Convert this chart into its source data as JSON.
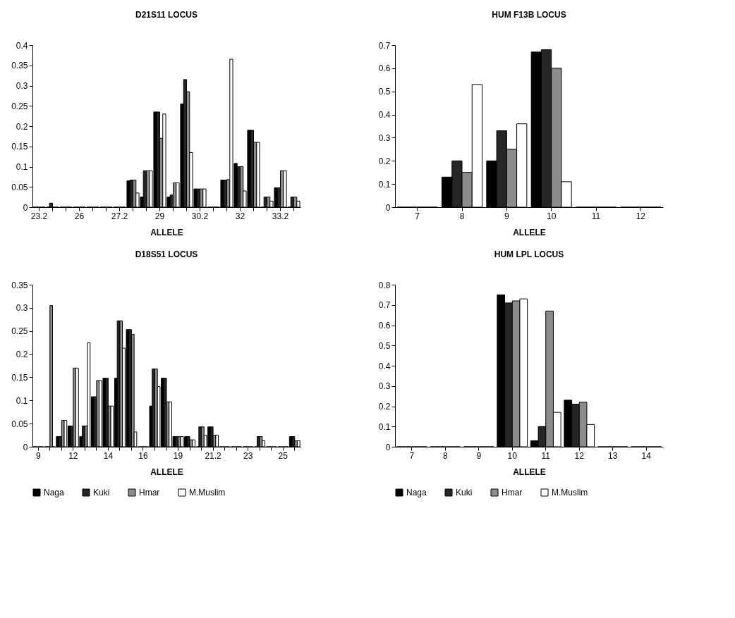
{
  "chart_data": [
    {
      "type": "bar",
      "title": "D21S11 LOCUS",
      "xlabel": "ALLELE",
      "legend": false,
      "categories": [
        "23.2",
        null,
        null,
        "26",
        null,
        null,
        "27.2",
        null,
        null,
        "29",
        null,
        null,
        "30.2",
        null,
        null,
        "32",
        null,
        null,
        "33.2",
        null
      ],
      "ylim": [
        0,
        0.4
      ],
      "yticks": [
        0,
        0.05,
        0.1,
        0.15,
        0.2,
        0.25,
        0.3,
        0.35,
        0.4
      ],
      "series": [
        {
          "color": "#000000",
          "values": [
            0,
            0,
            0,
            0,
            0,
            0,
            0,
            0.065,
            0.025,
            0.235,
            0.025,
            0.255,
            0.045,
            0,
            0.067,
            0.108,
            0.19,
            0,
            0.048,
            0
          ]
        },
        {
          "color": "#262626",
          "values": [
            0,
            0.01,
            0,
            0,
            0,
            0,
            0,
            0.067,
            0.09,
            0.235,
            0.03,
            0.315,
            0.045,
            0,
            0.067,
            0.1,
            0.19,
            0.025,
            0.048,
            0.025
          ]
        },
        {
          "color": "#8c8c8c",
          "values": [
            0,
            0,
            0,
            0,
            0,
            0,
            0,
            0.067,
            0.09,
            0.17,
            0.06,
            0.285,
            0.045,
            0,
            0.068,
            0.1,
            0.16,
            0.025,
            0.09,
            0.025
          ]
        },
        {
          "color": "#ffffff",
          "values": [
            0,
            0,
            0,
            0,
            0,
            0,
            0,
            0.035,
            0.09,
            0.23,
            0.06,
            0.135,
            0.045,
            0,
            0.365,
            0.04,
            0.16,
            0.015,
            0.09,
            0.015
          ]
        }
      ]
    },
    {
      "type": "bar",
      "title": "HUM F13B LOCUS",
      "xlabel": "ALLELE",
      "legend": false,
      "categories": [
        "7",
        "8",
        "9",
        "10",
        "11",
        "12"
      ],
      "ylim": [
        0,
        0.7
      ],
      "yticks": [
        0,
        0.1,
        0.2,
        0.3,
        0.4,
        0.5,
        0.6,
        0.7
      ],
      "series": [
        {
          "color": "#000000",
          "values": [
            0,
            0.13,
            0.2,
            0.67,
            0,
            0
          ]
        },
        {
          "color": "#262626",
          "values": [
            0,
            0.2,
            0.33,
            0.68,
            0,
            0
          ]
        },
        {
          "color": "#8c8c8c",
          "values": [
            0,
            0.15,
            0.25,
            0.6,
            0,
            0
          ]
        },
        {
          "color": "#ffffff",
          "values": [
            0,
            0.53,
            0.36,
            0.11,
            0,
            0
          ]
        }
      ]
    },
    {
      "type": "bar",
      "title": "D18S51 LOCUS",
      "xlabel": "ALLELE",
      "legend": "bottom",
      "categories": [
        "9",
        null,
        null,
        "12",
        null,
        null,
        "14",
        null,
        null,
        "16",
        null,
        null,
        "19",
        null,
        null,
        "21.2",
        null,
        null,
        "23",
        null,
        null,
        "25",
        null
      ],
      "ylim": [
        0,
        0.35
      ],
      "yticks": [
        0,
        0.05,
        0.1,
        0.15,
        0.2,
        0.25,
        0.3,
        0.35
      ],
      "series": [
        {
          "name": "Naga",
          "color": "#000000",
          "values": [
            0,
            0,
            0.022,
            0.045,
            0.022,
            0.108,
            0.148,
            0.148,
            0.253,
            0,
            0.088,
            0.148,
            0.022,
            0.022,
            0,
            0.043,
            0,
            0,
            0,
            0,
            0,
            0,
            0.022
          ]
        },
        {
          "name": "Kuki",
          "color": "#262626",
          "values": [
            0,
            0,
            0.022,
            0.045,
            0.045,
            0.108,
            0.148,
            0.272,
            0.253,
            0,
            0.168,
            0.148,
            0.022,
            0.022,
            0.043,
            0.043,
            0,
            0,
            0,
            0.022,
            0,
            0,
            0.022
          ]
        },
        {
          "name": "Hmar",
          "color": "#8c8c8c",
          "values": [
            0,
            0.305,
            0.057,
            0.17,
            0.045,
            0.143,
            0.088,
            0.272,
            0.243,
            0,
            0.168,
            0.097,
            0.022,
            0.015,
            0.043,
            0.025,
            0,
            0,
            0,
            0.022,
            0,
            0,
            0.013
          ]
        },
        {
          "name": "M.Muslim",
          "color": "#ffffff",
          "values": [
            0,
            0,
            0.057,
            0.17,
            0.225,
            0.143,
            0.088,
            0.213,
            0.032,
            0,
            0.13,
            0.097,
            0.022,
            0.015,
            0.025,
            0.025,
            0,
            0,
            0,
            0.013,
            0,
            0,
            0.013
          ]
        }
      ]
    },
    {
      "type": "bar",
      "title": "HUM LPL LOCUS",
      "xlabel": "ALLELE",
      "legend": "bottom",
      "categories": [
        "7",
        "8",
        "9",
        "10",
        "11",
        "12",
        "13",
        "14"
      ],
      "ylim": [
        0,
        0.8
      ],
      "yticks": [
        0,
        0.1,
        0.2,
        0.3,
        0.4,
        0.5,
        0.6,
        0.7,
        0.8
      ],
      "series": [
        {
          "name": "Naga",
          "color": "#000000",
          "values": [
            0,
            0,
            0,
            0.75,
            0.03,
            0.23,
            0,
            0
          ]
        },
        {
          "name": "Kuki",
          "color": "#262626",
          "values": [
            0,
            0,
            0,
            0.71,
            0.1,
            0.21,
            0,
            0
          ]
        },
        {
          "name": "Hmar",
          "color": "#8c8c8c",
          "values": [
            0,
            0,
            0,
            0.72,
            0.67,
            0.22,
            0,
            0
          ]
        },
        {
          "name": "M.Muslim",
          "color": "#ffffff",
          "values": [
            0,
            0,
            0,
            0.73,
            0.17,
            0.11,
            0,
            0
          ]
        }
      ]
    }
  ]
}
